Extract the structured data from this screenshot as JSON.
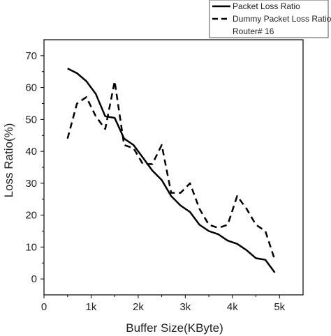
{
  "chart_data": {
    "type": "line",
    "title": "",
    "xlabel": "Buffer Size(KByte)",
    "ylabel": "Loss Ratio(%)",
    "xlim": [
      0,
      5500
    ],
    "ylim": [
      -5,
      75
    ],
    "x_ticks": [
      0,
      1000,
      2000,
      3000,
      4000,
      5000
    ],
    "x_tick_labels": [
      "0",
      "1k",
      "2k",
      "3k",
      "4k",
      "5k"
    ],
    "y_ticks": [
      0,
      10,
      20,
      30,
      40,
      50,
      60,
      70
    ],
    "y_tick_labels": [
      "0",
      "10",
      "20",
      "30",
      "40",
      "50",
      "60",
      "70"
    ],
    "legend": {
      "placement": "top-right",
      "entries": [
        "Packet Loss Ratio",
        "Dummy Packet Loss Ratio"
      ],
      "note": "Router# 16"
    },
    "series": [
      {
        "name": "Packet Loss Ratio",
        "style": "solid",
        "color": "#000000",
        "points": [
          [
            500,
            66
          ],
          [
            700,
            64.5
          ],
          [
            900,
            62
          ],
          [
            1100,
            58
          ],
          [
            1300,
            51
          ],
          [
            1500,
            50.5
          ],
          [
            1700,
            44
          ],
          [
            1900,
            42
          ],
          [
            2100,
            38
          ],
          [
            2300,
            34
          ],
          [
            2500,
            31
          ],
          [
            2700,
            26
          ],
          [
            2900,
            23
          ],
          [
            3100,
            21
          ],
          [
            3300,
            17
          ],
          [
            3500,
            15
          ],
          [
            3700,
            14
          ],
          [
            3900,
            12
          ],
          [
            4100,
            11
          ],
          [
            4300,
            9
          ],
          [
            4500,
            6.5
          ],
          [
            4700,
            6
          ],
          [
            4900,
            2
          ]
        ]
      },
      {
        "name": "Dummy Packet Loss Ratio",
        "style": "dashed",
        "color": "#000000",
        "points": [
          [
            500,
            44
          ],
          [
            700,
            55
          ],
          [
            900,
            57
          ],
          [
            1100,
            51
          ],
          [
            1300,
            47
          ],
          [
            1500,
            62
          ],
          [
            1700,
            42
          ],
          [
            1900,
            41
          ],
          [
            2100,
            36
          ],
          [
            2300,
            36
          ],
          [
            2500,
            42
          ],
          [
            2700,
            27
          ],
          [
            2900,
            27
          ],
          [
            3100,
            30
          ],
          [
            3300,
            22
          ],
          [
            3500,
            17
          ],
          [
            3700,
            16
          ],
          [
            3900,
            17
          ],
          [
            4100,
            26
          ],
          [
            4300,
            22
          ],
          [
            4500,
            17
          ],
          [
            4700,
            15
          ],
          [
            4900,
            6
          ]
        ]
      }
    ]
  }
}
